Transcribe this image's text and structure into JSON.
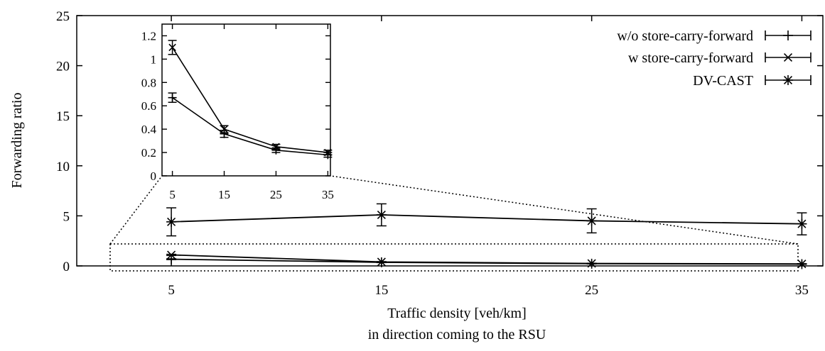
{
  "chart_data": {
    "type": "line",
    "xlabel_lines": [
      "Traffic density [veh/km]",
      "in direction coming to the RSU"
    ],
    "ylabel": "Forwarding ratio",
    "x": [
      5,
      15,
      25,
      35
    ],
    "xlim": [
      0.5,
      36
    ],
    "ylim": [
      0,
      25
    ],
    "xticks": [
      "5",
      "15",
      "25",
      "35"
    ],
    "yticks": [
      "0",
      "5",
      "10",
      "15",
      "20",
      "25"
    ],
    "grid": false,
    "legend_position": "top-right",
    "series": [
      {
        "name": "w/o store-carry-forward",
        "marker": "plus",
        "values": [
          0.67,
          0.36,
          0.22,
          0.18
        ],
        "err": [
          0.04,
          0.03,
          0.02,
          0.02
        ]
      },
      {
        "name": "w store-carry-forward",
        "marker": "cross",
        "values": [
          1.1,
          0.4,
          0.25,
          0.2
        ],
        "err": [
          0.06,
          0.03,
          0.02,
          0.02
        ]
      },
      {
        "name": "DV-CAST",
        "marker": "star",
        "values": [
          4.4,
          5.1,
          4.5,
          4.2
        ],
        "err": [
          1.4,
          1.1,
          1.2,
          1.1
        ]
      }
    ],
    "inset": {
      "xticks": [
        "5",
        "15",
        "25",
        "35"
      ],
      "yticks": [
        "0",
        "0.2",
        "0.4",
        "0.6",
        "0.8",
        "1",
        "1.2"
      ],
      "xlim": [
        3,
        35.5
      ],
      "ylim": [
        0,
        1.3
      ]
    }
  }
}
